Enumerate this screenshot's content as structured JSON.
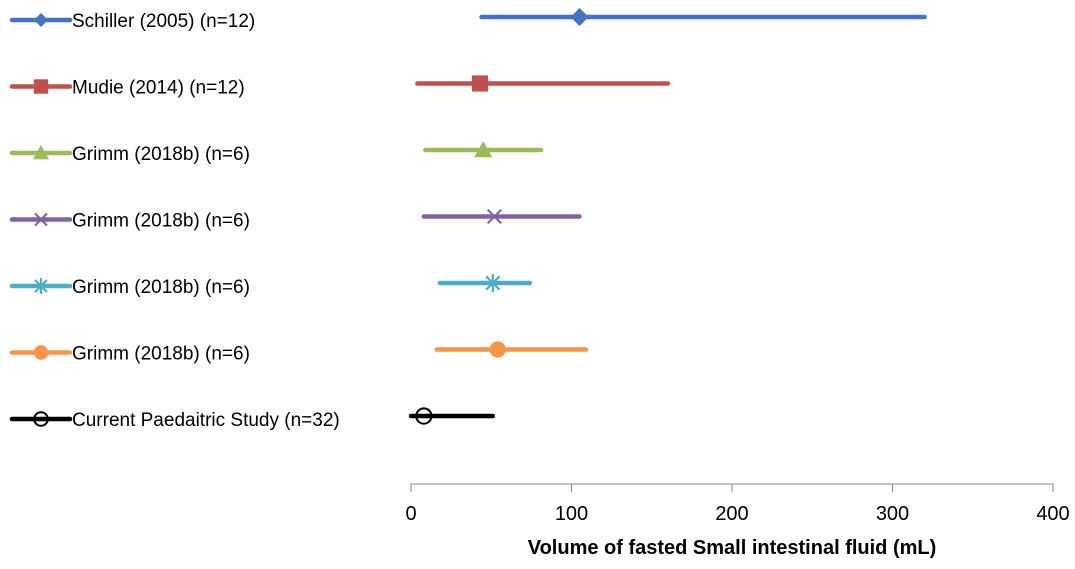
{
  "chart_data": {
    "type": "range-plot",
    "xlabel": "Volume of fasted Small intestinal fluid (mL)",
    "xlim": [
      0,
      400
    ],
    "xticks": [
      0,
      100,
      200,
      300,
      400
    ],
    "grid": false,
    "legend_position": "left",
    "series": [
      {
        "name": "Schiller (2005) (n=12)",
        "marker": "diamond",
        "color": "#4472C4",
        "min": 44,
        "median": 105,
        "max": 320
      },
      {
        "name": "Mudie (2014) (n=12)",
        "marker": "square",
        "color": "#C0504D",
        "min": 4,
        "median": 43,
        "max": 160
      },
      {
        "name": "Grimm (2018b) (n=6)",
        "marker": "triangle",
        "color": "#9BBB59",
        "min": 9,
        "median": 45,
        "max": 81
      },
      {
        "name": "Grimm (2018b) (n=6)",
        "marker": "x",
        "color": "#8064A2",
        "min": 8,
        "median": 52,
        "max": 105
      },
      {
        "name": "Grimm (2018b) (n=6)",
        "marker": "star",
        "color": "#4BACC6",
        "min": 18,
        "median": 51,
        "max": 74
      },
      {
        "name": "Grimm (2018b) (n=6)",
        "marker": "circle",
        "color": "#F79646",
        "min": 16,
        "median": 54,
        "max": 109
      },
      {
        "name": "Current Paedaitric Study (n=32)",
        "marker": "open-circle",
        "color": "#000000",
        "min": 0,
        "median": 8,
        "max": 51
      }
    ]
  }
}
